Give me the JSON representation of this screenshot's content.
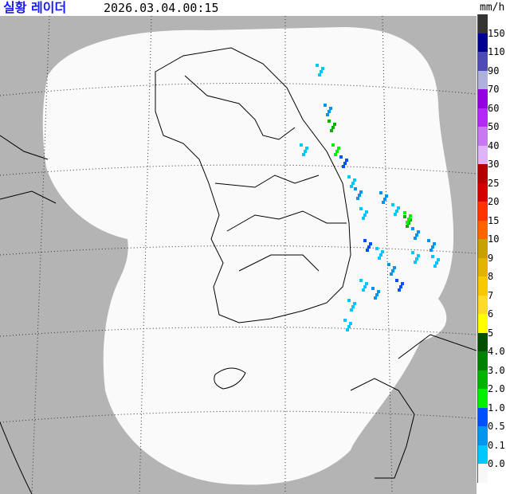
{
  "header": {
    "title": "실황 레이더",
    "timestamp": "2026.03.04.00:15",
    "unit": "mm/h"
  },
  "legend": {
    "labels": [
      "150",
      "110",
      "90",
      "70",
      "60",
      "50",
      "40",
      "30",
      "25",
      "20",
      "15",
      "10",
      "9",
      "8",
      "7",
      "6",
      "5",
      "4.0",
      "3.0",
      "2.0",
      "1.0",
      "0.5",
      "0.1",
      "0.0"
    ],
    "colors": [
      "#333333",
      "#000090",
      "#4c4cb4",
      "#b0b0dc",
      "#9400e0",
      "#b428f8",
      "#c878f0",
      "#e0b4f8",
      "#b40000",
      "#d40000",
      "#ff3200",
      "#ff6400",
      "#c8a000",
      "#e0b400",
      "#f8c800",
      "#ffdc28",
      "#ffff00",
      "#005000",
      "#008200",
      "#00b400",
      "#00f000",
      "#0050ff",
      "#0096f0",
      "#00c8ff",
      "#f8f8f8"
    ]
  },
  "map": {
    "background_color": "#b4b4b4",
    "coverage_color": "#fafafa",
    "grid": "dotted",
    "coastline_color": "#000000"
  }
}
